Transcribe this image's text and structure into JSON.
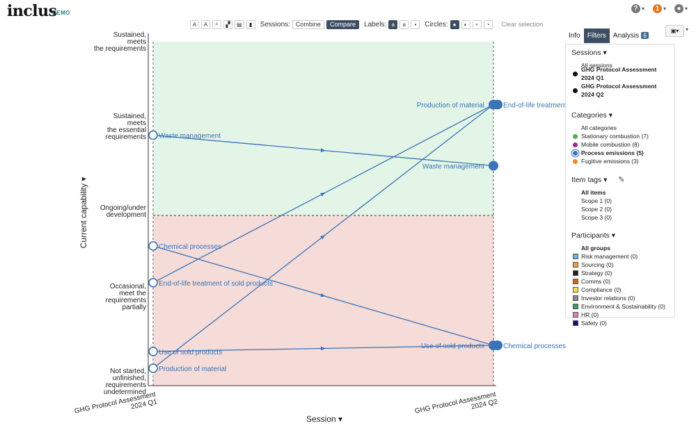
{
  "app": {
    "logo": "inclus",
    "logo_tag": "DEMO",
    "notification_count": "1"
  },
  "toolbar": {
    "sessions_label": "Sessions:",
    "sessions_options": [
      "Combine",
      "Compare"
    ],
    "labels_label": "Labels:",
    "circles_label": "Circles:",
    "clear_selection": "Clear selection"
  },
  "y_axis": {
    "title": "Current capability"
  },
  "x_axis": {
    "title": "Session"
  },
  "chart_data": {
    "type": "scatter",
    "y_levels": [
      "Not started, unfinished, requirements undetermined",
      "Occasional, meet the requirements partially",
      "Ongoing/under development",
      "Sustained, meets the essential requirements",
      "Sustained, meets the requirements"
    ],
    "x_categories": [
      "GHG Protocol Assessment 2024 Q1",
      "GHG Protocol Assessment 2024 Q2"
    ],
    "zones": [
      {
        "from": 0,
        "to": 2,
        "color": "#f5dcd8"
      },
      {
        "from": 2,
        "to": 4,
        "color": "#e3f5e6"
      }
    ],
    "threshold_level": 2,
    "series": [
      {
        "name": "Waste management",
        "q1": 3.05,
        "q2": 2.65
      },
      {
        "name": "Chemical processes",
        "q1": 1.6,
        "q2": 0.3
      },
      {
        "name": "End-of-life treatment of sold products",
        "q1": 1.12,
        "q2": 3.45
      },
      {
        "name": "Use of sold products",
        "q1": 0.22,
        "q2": 0.3
      },
      {
        "name": "Production of material",
        "q1": 0.0,
        "q2": 3.45
      }
    ],
    "q2_labels": [
      {
        "text": "Production of material",
        "level": 3.45,
        "side": "left"
      },
      {
        "text": "End-of-life treatment",
        "level": 3.45,
        "side": "right"
      },
      {
        "text": "Waste management",
        "level": 2.65,
        "side": "left"
      },
      {
        "text": "Use of sold products",
        "level": 0.3,
        "side": "left"
      },
      {
        "text": "Chemical processes",
        "level": 0.3,
        "side": "right"
      }
    ],
    "line_color": "#3a73b8"
  },
  "right_panel": {
    "tabs": [
      "Info",
      "Filters",
      "Analysis"
    ],
    "analysis_count": "6",
    "sessions": {
      "title": "Sessions",
      "all": "All sessions",
      "items": [
        "GHG Protocol Assessment 2024 Q1",
        "GHG Protocol Assessment 2024 Q2"
      ]
    },
    "categories": {
      "title": "Categories",
      "all": "All categories",
      "items": [
        {
          "label": "Stationary combustion (7)",
          "color": "#4caf50"
        },
        {
          "label": "Mobile combustion (8)",
          "color": "#9c2a8c"
        },
        {
          "label": "Process emissions (5)",
          "color": "#3a73b8"
        },
        {
          "label": "Fugitive emissions (3)",
          "color": "#f08a24"
        }
      ]
    },
    "item_tags": {
      "title": "Item tags",
      "all": "All items",
      "items": [
        "Scope 1 (0)",
        "Scope 2 (0)",
        "Scope 3 (0)"
      ]
    },
    "participants": {
      "title": "Participants",
      "all": "All groups",
      "items": [
        {
          "label": "Risk management (0)",
          "color": "#6ab4e0"
        },
        {
          "label": "Sourcing (0)",
          "color": "#f0a030"
        },
        {
          "label": "Strategy (0)",
          "color": "#222222"
        },
        {
          "label": "Comms (0)",
          "color": "#d2691e"
        },
        {
          "label": "Compliance (0)",
          "color": "#f5e050"
        },
        {
          "label": "Investor relations (0)",
          "color": "#8a8a8a"
        },
        {
          "label": "Environment & Sustainability (0)",
          "color": "#3aa060"
        },
        {
          "label": "HR (0)",
          "color": "#e080c0"
        },
        {
          "label": "Safety (0)",
          "color": "#101080"
        }
      ]
    }
  }
}
